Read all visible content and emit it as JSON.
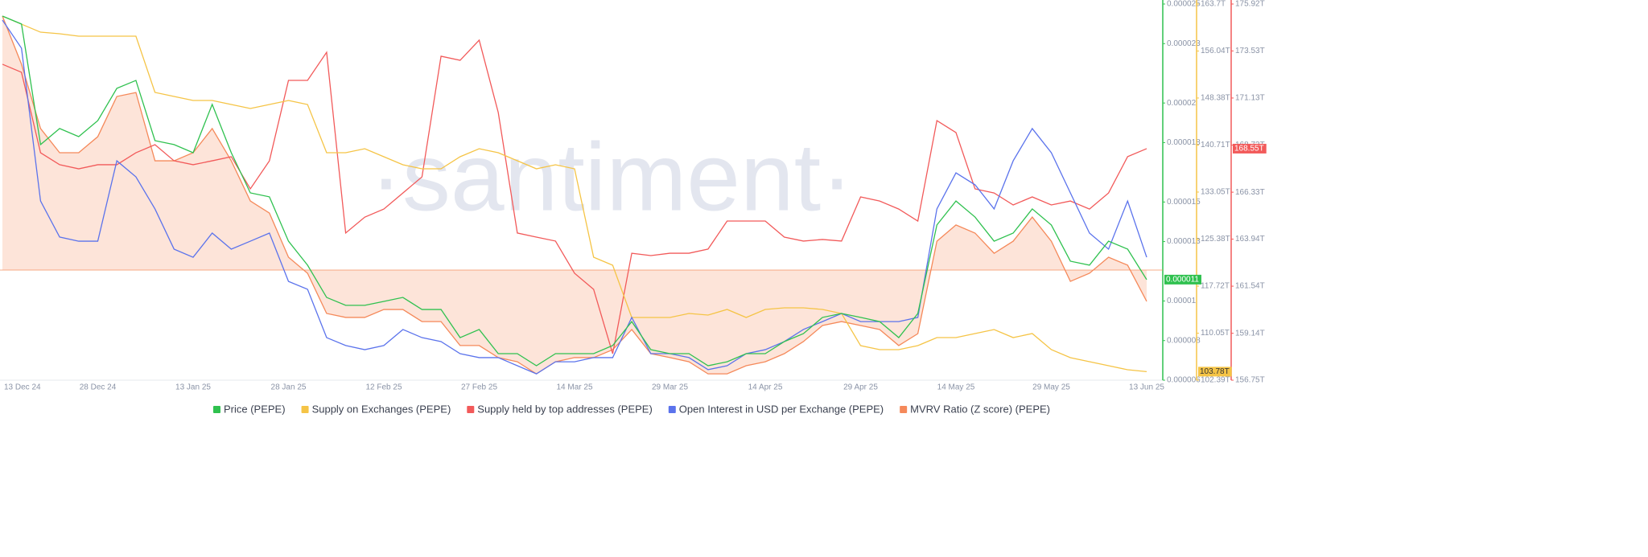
{
  "chart_data": {
    "type": "line",
    "watermark": "·santiment·",
    "categories": [
      "13 Dec 24",
      null,
      null,
      null,
      null,
      "28 Dec 24",
      null,
      null,
      null,
      null,
      "13 Jan 25",
      null,
      null,
      null,
      null,
      "28 Jan 25",
      null,
      null,
      null,
      null,
      "12 Feb 25",
      null,
      null,
      null,
      null,
      "27 Feb 25",
      null,
      null,
      null,
      null,
      "14 Mar 25",
      null,
      null,
      null,
      null,
      "29 Mar 25",
      null,
      null,
      null,
      null,
      "14 Apr 25",
      null,
      null,
      null,
      null,
      "29 Apr 25",
      null,
      null,
      null,
      null,
      "14 May 25",
      null,
      null,
      null,
      null,
      "29 May 25",
      null,
      null,
      null,
      null,
      "13 Jun 25"
    ],
    "ylim": [
      6e-06,
      2.5e-05
    ],
    "yticks": [
      {
        "value": 6e-06,
        "label": "0.000006"
      },
      {
        "value": 8e-06,
        "label": "0.000008"
      },
      {
        "value": 1e-05,
        "label": "0.00001"
      },
      {
        "value": 1.3e-05,
        "label": "0.000013"
      },
      {
        "value": 1.5e-05,
        "label": "0.000015"
      },
      {
        "value": 1.8e-05,
        "label": "0.000018"
      },
      {
        "value": 2e-05,
        "label": "0.00002"
      },
      {
        "value": 2.3e-05,
        "label": "0.000023"
      },
      {
        "value": 2.5e-05,
        "label": "0.000025"
      }
    ],
    "y2lim": [
      102.39,
      163.7
    ],
    "y2ticks": [
      {
        "value": 102.39,
        "label": "102.39T"
      },
      {
        "value": 110.05,
        "label": "110.05T"
      },
      {
        "value": 117.72,
        "label": "117.72T"
      },
      {
        "value": 125.38,
        "label": "125.38T"
      },
      {
        "value": 133.05,
        "label": "133.05T"
      },
      {
        "value": 140.71,
        "label": "140.71T"
      },
      {
        "value": 148.38,
        "label": "148.38T"
      },
      {
        "value": 156.04,
        "label": "156.04T"
      },
      {
        "value": 163.7,
        "label": "163.7T"
      }
    ],
    "y3lim": [
      156.75,
      175.92
    ],
    "y3ticks": [
      {
        "value": 156.75,
        "label": "156.75T"
      },
      {
        "value": 159.14,
        "label": "159.14T"
      },
      {
        "value": 161.54,
        "label": "161.54T"
      },
      {
        "value": 163.94,
        "label": "163.94T"
      },
      {
        "value": 166.33,
        "label": "166.33T"
      },
      {
        "value": 168.73,
        "label": "168.73T"
      },
      {
        "value": 171.13,
        "label": "171.13T"
      },
      {
        "value": 173.53,
        "label": "173.53T"
      },
      {
        "value": 175.92,
        "label": "175.92T"
      }
    ],
    "series": [
      {
        "name": "Price (PEPE)",
        "color": "#2fc14f",
        "axis": "y",
        "last_label": "0.000011",
        "values": [
          2.439e-05,
          2.399e-05,
          1.79e-05,
          1.871e-05,
          1.83e-05,
          1.911e-05,
          2.074e-05,
          2.114e-05,
          1.81e-05,
          1.79e-05,
          1.749e-05,
          1.993e-05,
          1.749e-05,
          1.546e-05,
          1.526e-05,
          1.302e-05,
          1.181e-05,
          1.018e-05,
          9.78e-06,
          9.78e-06,
          9.98e-06,
          1.018e-05,
          9.57e-06,
          9.57e-06,
          8.15e-06,
          8.56e-06,
          7.34e-06,
          7.34e-06,
          6.73e-06,
          7.34e-06,
          7.34e-06,
          7.34e-06,
          7.75e-06,
          8.96e-06,
          7.54e-06,
          7.34e-06,
          7.34e-06,
          6.73e-06,
          6.93e-06,
          7.34e-06,
          7.34e-06,
          7.95e-06,
          8.35e-06,
          9.17e-06,
          9.37e-06,
          9.17e-06,
          8.96e-06,
          8.15e-06,
          9.37e-06,
          1.384e-05,
          1.505e-05,
          1.424e-05,
          1.302e-05,
          1.343e-05,
          1.465e-05,
          1.384e-05,
          1.201e-05,
          1.181e-05,
          1.302e-05,
          1.262e-05,
          1.108e-05
        ]
      },
      {
        "name": "Supply on Exchanges (PEPE)",
        "color": "#f5c446",
        "axis": "y2",
        "last_label": "103.78T",
        "values": [
          161.73,
          160.42,
          159.11,
          158.85,
          158.46,
          158.46,
          158.46,
          158.46,
          149.29,
          148.63,
          147.98,
          147.98,
          147.32,
          146.67,
          147.32,
          147.98,
          147.32,
          139.46,
          139.46,
          140.12,
          138.81,
          137.5,
          136.84,
          136.84,
          138.81,
          140.12,
          139.46,
          138.15,
          136.84,
          137.5,
          136.84,
          122.43,
          121.12,
          112.61,
          112.61,
          112.61,
          113.26,
          113.0,
          113.92,
          112.61,
          113.92,
          114.18,
          114.18,
          113.92,
          113.26,
          108.02,
          107.37,
          107.37,
          108.02,
          109.33,
          109.33,
          109.99,
          110.64,
          109.33,
          109.99,
          107.37,
          106.06,
          105.4,
          104.75,
          104.09,
          103.78
        ]
      },
      {
        "name": "Supply held by top addresses (PEPE)",
        "color": "#f25a5a",
        "axis": "y3",
        "last_label": "168.55T",
        "values": [
          172.85,
          172.44,
          168.34,
          167.73,
          167.52,
          167.73,
          167.73,
          168.34,
          168.75,
          167.93,
          167.73,
          167.93,
          168.14,
          166.5,
          167.93,
          172.03,
          172.03,
          173.46,
          164.25,
          165.06,
          165.47,
          166.29,
          167.11,
          173.26,
          173.05,
          174.08,
          170.39,
          164.25,
          164.04,
          163.84,
          162.2,
          161.38,
          158.1,
          163.22,
          163.1,
          163.22,
          163.22,
          163.43,
          164.86,
          164.86,
          164.86,
          164.04,
          163.84,
          163.92,
          163.84,
          166.09,
          165.88,
          165.47,
          164.86,
          169.98,
          169.37,
          166.5,
          166.29,
          165.68,
          166.09,
          165.68,
          165.88,
          165.47,
          166.29,
          168.14,
          168.55
        ]
      },
      {
        "name": "Open Interest in USD per Exchange (PEPE)",
        "color": "#5b73ec",
        "axis": "y",
        "values": [
          2.419e-05,
          2.277e-05,
          1.505e-05,
          1.323e-05,
          1.302e-05,
          1.302e-05,
          1.708e-05,
          1.627e-05,
          1.465e-05,
          1.262e-05,
          1.221e-05,
          1.343e-05,
          1.262e-05,
          1.302e-05,
          1.343e-05,
          1.099e-05,
          1.059e-05,
          8.15e-06,
          7.75e-06,
          7.54e-06,
          7.75e-06,
          8.56e-06,
          8.15e-06,
          7.95e-06,
          7.34e-06,
          7.14e-06,
          7.14e-06,
          6.73e-06,
          6.32e-06,
          6.93e-06,
          6.93e-06,
          7.14e-06,
          7.14e-06,
          9.17e-06,
          7.34e-06,
          7.34e-06,
          7.14e-06,
          6.53e-06,
          6.73e-06,
          7.34e-06,
          7.54e-06,
          7.95e-06,
          8.56e-06,
          8.96e-06,
          9.37e-06,
          8.96e-06,
          8.96e-06,
          8.96e-06,
          9.17e-06,
          1.465e-05,
          1.647e-05,
          1.587e-05,
          1.465e-05,
          1.708e-05,
          1.871e-05,
          1.749e-05,
          1.546e-05,
          1.343e-05,
          1.262e-05,
          1.505e-05,
          1.221e-05
        ]
      },
      {
        "name": "MVRV Ratio (Z score) (PEPE)",
        "color": "#f5895a",
        "axis": "y",
        "area": true,
        "area_color": "#fde4d9",
        "area_baseline": 1.156e-05,
        "values": [
          2.439e-05,
          2.196e-05,
          1.871e-05,
          1.749e-05,
          1.749e-05,
          1.83e-05,
          2.033e-05,
          2.053e-05,
          1.708e-05,
          1.708e-05,
          1.749e-05,
          1.871e-05,
          1.708e-05,
          1.505e-05,
          1.444e-05,
          1.221e-05,
          1.14e-05,
          9.37e-06,
          9.17e-06,
          9.17e-06,
          9.57e-06,
          9.57e-06,
          8.96e-06,
          8.96e-06,
          7.75e-06,
          7.75e-06,
          7.14e-06,
          6.93e-06,
          6.32e-06,
          6.93e-06,
          7.14e-06,
          7.14e-06,
          7.54e-06,
          8.56e-06,
          7.34e-06,
          7.14e-06,
          6.93e-06,
          6.32e-06,
          6.32e-06,
          6.73e-06,
          6.93e-06,
          7.34e-06,
          7.95e-06,
          8.76e-06,
          8.96e-06,
          8.76e-06,
          8.56e-06,
          7.75e-06,
          8.35e-06,
          1.302e-05,
          1.384e-05,
          1.343e-05,
          1.241e-05,
          1.302e-05,
          1.424e-05,
          1.302e-05,
          1.099e-05,
          1.14e-05,
          1.221e-05,
          1.181e-05,
          9.98e-06
        ]
      }
    ]
  }
}
